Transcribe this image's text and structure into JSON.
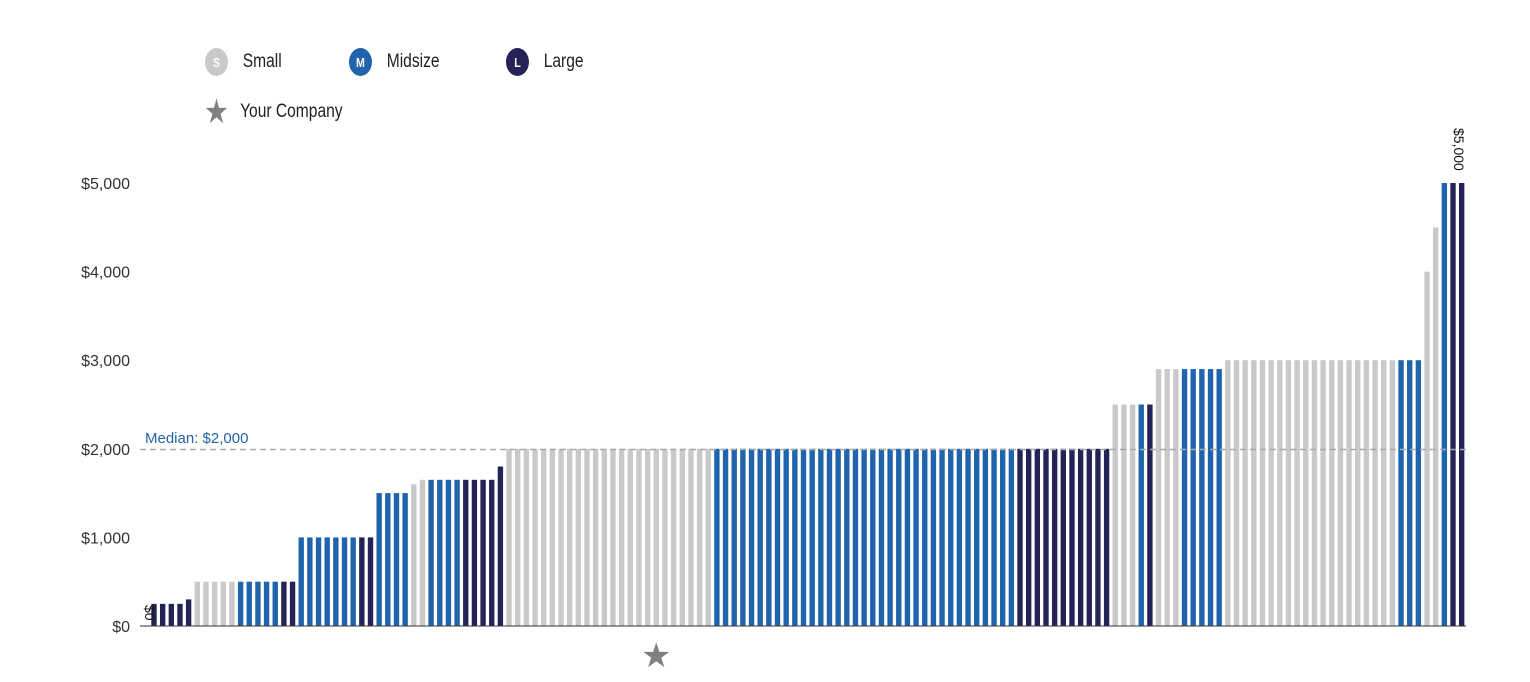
{
  "legend": {
    "small": {
      "letter": "S",
      "label": "Small",
      "color": "#c8c9cb"
    },
    "midsize": {
      "letter": "M",
      "label": "Midsize",
      "color": "#1f64ad"
    },
    "large": {
      "letter": "L",
      "label": "Large",
      "color": "#242256"
    },
    "company": {
      "icon": "star-icon",
      "label": "Your Company",
      "color": "#808080"
    }
  },
  "chart_data": {
    "type": "bar",
    "ylim": [
      0,
      5000
    ],
    "yticks": [
      "$0",
      "$1,000",
      "$2,000",
      "$3,000",
      "$4,000",
      "$5,000"
    ],
    "median": {
      "label": "Median: $2,000",
      "value": 2000
    },
    "value_labels": {
      "first": "$0",
      "last": "$5,000"
    },
    "your_company_index": 59,
    "bars": [
      {
        "v": 0,
        "s": "L"
      },
      {
        "v": 250,
        "s": "L"
      },
      {
        "v": 250,
        "s": "L"
      },
      {
        "v": 250,
        "s": "L"
      },
      {
        "v": 250,
        "s": "L"
      },
      {
        "v": 300,
        "s": "L"
      },
      {
        "v": 500,
        "s": "S"
      },
      {
        "v": 500,
        "s": "S"
      },
      {
        "v": 500,
        "s": "S"
      },
      {
        "v": 500,
        "s": "S"
      },
      {
        "v": 500,
        "s": "S"
      },
      {
        "v": 500,
        "s": "M"
      },
      {
        "v": 500,
        "s": "M"
      },
      {
        "v": 500,
        "s": "M"
      },
      {
        "v": 500,
        "s": "M"
      },
      {
        "v": 500,
        "s": "M"
      },
      {
        "v": 500,
        "s": "L"
      },
      {
        "v": 500,
        "s": "L"
      },
      {
        "v": 1000,
        "s": "M"
      },
      {
        "v": 1000,
        "s": "M"
      },
      {
        "v": 1000,
        "s": "M"
      },
      {
        "v": 1000,
        "s": "M"
      },
      {
        "v": 1000,
        "s": "M"
      },
      {
        "v": 1000,
        "s": "M"
      },
      {
        "v": 1000,
        "s": "M"
      },
      {
        "v": 1000,
        "s": "L"
      },
      {
        "v": 1000,
        "s": "L"
      },
      {
        "v": 1500,
        "s": "M"
      },
      {
        "v": 1500,
        "s": "M"
      },
      {
        "v": 1500,
        "s": "M"
      },
      {
        "v": 1500,
        "s": "M"
      },
      {
        "v": 1600,
        "s": "S"
      },
      {
        "v": 1650,
        "s": "S"
      },
      {
        "v": 1650,
        "s": "M"
      },
      {
        "v": 1650,
        "s": "M"
      },
      {
        "v": 1650,
        "s": "M"
      },
      {
        "v": 1650,
        "s": "M"
      },
      {
        "v": 1650,
        "s": "L"
      },
      {
        "v": 1650,
        "s": "L"
      },
      {
        "v": 1650,
        "s": "L"
      },
      {
        "v": 1650,
        "s": "L"
      },
      {
        "v": 1800,
        "s": "L"
      },
      {
        "v": 2000,
        "s": "S"
      },
      {
        "v": 2000,
        "s": "S"
      },
      {
        "v": 2000,
        "s": "S"
      },
      {
        "v": 2000,
        "s": "S"
      },
      {
        "v": 2000,
        "s": "S"
      },
      {
        "v": 2000,
        "s": "S"
      },
      {
        "v": 2000,
        "s": "S"
      },
      {
        "v": 2000,
        "s": "S"
      },
      {
        "v": 2000,
        "s": "S"
      },
      {
        "v": 2000,
        "s": "S"
      },
      {
        "v": 2000,
        "s": "S"
      },
      {
        "v": 2000,
        "s": "S"
      },
      {
        "v": 2000,
        "s": "S"
      },
      {
        "v": 2000,
        "s": "S"
      },
      {
        "v": 2000,
        "s": "S"
      },
      {
        "v": 2000,
        "s": "S"
      },
      {
        "v": 2000,
        "s": "S"
      },
      {
        "v": 2000,
        "s": "S"
      },
      {
        "v": 2000,
        "s": "S"
      },
      {
        "v": 2000,
        "s": "S"
      },
      {
        "v": 2000,
        "s": "S"
      },
      {
        "v": 2000,
        "s": "S"
      },
      {
        "v": 2000,
        "s": "S"
      },
      {
        "v": 2000,
        "s": "S"
      },
      {
        "v": 2000,
        "s": "M"
      },
      {
        "v": 2000,
        "s": "M"
      },
      {
        "v": 2000,
        "s": "M"
      },
      {
        "v": 2000,
        "s": "M"
      },
      {
        "v": 2000,
        "s": "M"
      },
      {
        "v": 2000,
        "s": "M"
      },
      {
        "v": 2000,
        "s": "M"
      },
      {
        "v": 2000,
        "s": "M"
      },
      {
        "v": 2000,
        "s": "M"
      },
      {
        "v": 2000,
        "s": "M"
      },
      {
        "v": 2000,
        "s": "M"
      },
      {
        "v": 2000,
        "s": "M"
      },
      {
        "v": 2000,
        "s": "M"
      },
      {
        "v": 2000,
        "s": "M"
      },
      {
        "v": 2000,
        "s": "M"
      },
      {
        "v": 2000,
        "s": "M"
      },
      {
        "v": 2000,
        "s": "M"
      },
      {
        "v": 2000,
        "s": "M"
      },
      {
        "v": 2000,
        "s": "M"
      },
      {
        "v": 2000,
        "s": "M"
      },
      {
        "v": 2000,
        "s": "M"
      },
      {
        "v": 2000,
        "s": "M"
      },
      {
        "v": 2000,
        "s": "M"
      },
      {
        "v": 2000,
        "s": "M"
      },
      {
        "v": 2000,
        "s": "M"
      },
      {
        "v": 2000,
        "s": "M"
      },
      {
        "v": 2000,
        "s": "M"
      },
      {
        "v": 2000,
        "s": "M"
      },
      {
        "v": 2000,
        "s": "M"
      },
      {
        "v": 2000,
        "s": "M"
      },
      {
        "v": 2000,
        "s": "M"
      },
      {
        "v": 2000,
        "s": "M"
      },
      {
        "v": 2000,
        "s": "M"
      },
      {
        "v": 2000,
        "s": "M"
      },
      {
        "v": 2000,
        "s": "M"
      },
      {
        "v": 2000,
        "s": "L"
      },
      {
        "v": 2000,
        "s": "L"
      },
      {
        "v": 2000,
        "s": "L"
      },
      {
        "v": 2000,
        "s": "L"
      },
      {
        "v": 2000,
        "s": "L"
      },
      {
        "v": 2000,
        "s": "L"
      },
      {
        "v": 2000,
        "s": "L"
      },
      {
        "v": 2000,
        "s": "L"
      },
      {
        "v": 2000,
        "s": "L"
      },
      {
        "v": 2000,
        "s": "L"
      },
      {
        "v": 2000,
        "s": "L"
      },
      {
        "v": 2500,
        "s": "S"
      },
      {
        "v": 2500,
        "s": "S"
      },
      {
        "v": 2500,
        "s": "S"
      },
      {
        "v": 2500,
        "s": "M"
      },
      {
        "v": 2500,
        "s": "L"
      },
      {
        "v": 2900,
        "s": "S"
      },
      {
        "v": 2900,
        "s": "S"
      },
      {
        "v": 2900,
        "s": "S"
      },
      {
        "v": 2900,
        "s": "M"
      },
      {
        "v": 2900,
        "s": "M"
      },
      {
        "v": 2900,
        "s": "M"
      },
      {
        "v": 2900,
        "s": "M"
      },
      {
        "v": 2900,
        "s": "M"
      },
      {
        "v": 3000,
        "s": "S"
      },
      {
        "v": 3000,
        "s": "S"
      },
      {
        "v": 3000,
        "s": "S"
      },
      {
        "v": 3000,
        "s": "S"
      },
      {
        "v": 3000,
        "s": "S"
      },
      {
        "v": 3000,
        "s": "S"
      },
      {
        "v": 3000,
        "s": "S"
      },
      {
        "v": 3000,
        "s": "S"
      },
      {
        "v": 3000,
        "s": "S"
      },
      {
        "v": 3000,
        "s": "S"
      },
      {
        "v": 3000,
        "s": "S"
      },
      {
        "v": 3000,
        "s": "S"
      },
      {
        "v": 3000,
        "s": "S"
      },
      {
        "v": 3000,
        "s": "S"
      },
      {
        "v": 3000,
        "s": "S"
      },
      {
        "v": 3000,
        "s": "S"
      },
      {
        "v": 3000,
        "s": "S"
      },
      {
        "v": 3000,
        "s": "S"
      },
      {
        "v": 3000,
        "s": "S"
      },
      {
        "v": 3000,
        "s": "S"
      },
      {
        "v": 3000,
        "s": "M"
      },
      {
        "v": 3000,
        "s": "M"
      },
      {
        "v": 3000,
        "s": "M"
      },
      {
        "v": 4000,
        "s": "S"
      },
      {
        "v": 4500,
        "s": "S"
      },
      {
        "v": 5000,
        "s": "M"
      },
      {
        "v": 5000,
        "s": "L"
      },
      {
        "v": 5000,
        "s": "L"
      }
    ]
  }
}
